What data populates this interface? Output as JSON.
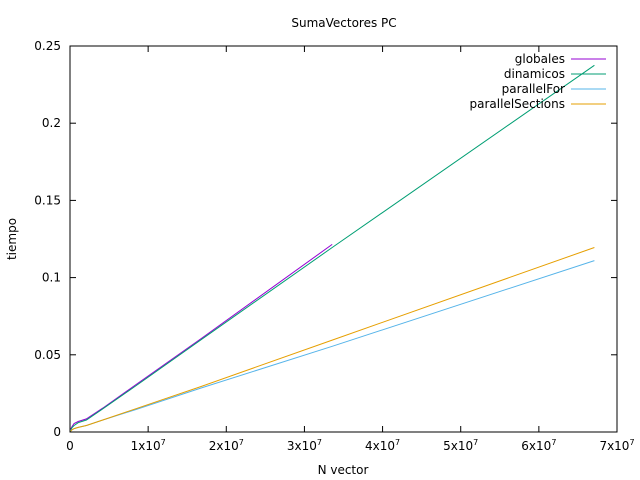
{
  "chart_data": {
    "type": "line",
    "title": "SumaVectores PC",
    "xlabel": "N vector",
    "ylabel": "tiempo",
    "xlim": [
      0,
      70000000
    ],
    "ylim": [
      0,
      0.25
    ],
    "grid": false,
    "legend_position": "top-right",
    "x_ticks": [
      {
        "value": 0,
        "mantissa": "0",
        "exp": ""
      },
      {
        "value": 10000000,
        "mantissa": "1x10",
        "exp": "7"
      },
      {
        "value": 20000000,
        "mantissa": "2x10",
        "exp": "7"
      },
      {
        "value": 30000000,
        "mantissa": "3x10",
        "exp": "7"
      },
      {
        "value": 40000000,
        "mantissa": "4x10",
        "exp": "7"
      },
      {
        "value": 50000000,
        "mantissa": "5x10",
        "exp": "7"
      },
      {
        "value": 60000000,
        "mantissa": "6x10",
        "exp": "7"
      },
      {
        "value": 70000000,
        "mantissa": "7x10",
        "exp": "7"
      }
    ],
    "y_ticks": [
      {
        "value": 0,
        "label": "0"
      },
      {
        "value": 0.05,
        "label": "0.05"
      },
      {
        "value": 0.1,
        "label": "0.1"
      },
      {
        "value": 0.15,
        "label": "0.15"
      },
      {
        "value": 0.2,
        "label": "0.2"
      },
      {
        "value": 0.25,
        "label": "0.25"
      }
    ],
    "series": [
      {
        "name": "globales",
        "color": "#9400d3",
        "points": [
          [
            65536,
            0.0012
          ],
          [
            131072,
            0.0022
          ],
          [
            262144,
            0.0035
          ],
          [
            524288,
            0.0055
          ],
          [
            1048576,
            0.0068
          ],
          [
            2097152,
            0.0085
          ],
          [
            4194304,
            0.0155
          ],
          [
            8388608,
            0.0305
          ],
          [
            16777216,
            0.0605
          ],
          [
            33554432,
            0.1215
          ]
        ]
      },
      {
        "name": "dinamicos",
        "color": "#009e73",
        "points": [
          [
            65536,
            0.0008
          ],
          [
            131072,
            0.0015
          ],
          [
            262144,
            0.0028
          ],
          [
            524288,
            0.0042
          ],
          [
            1048576,
            0.006
          ],
          [
            2097152,
            0.0078
          ],
          [
            4194304,
            0.015
          ],
          [
            8388608,
            0.0298
          ],
          [
            16777216,
            0.0598
          ],
          [
            33554432,
            0.1195
          ],
          [
            67108864,
            0.2375
          ]
        ]
      },
      {
        "name": "parallelFor",
        "color": "#56b4e9",
        "points": [
          [
            65536,
            0.0005
          ],
          [
            131072,
            0.0008
          ],
          [
            262144,
            0.0014
          ],
          [
            524288,
            0.0022
          ],
          [
            1048576,
            0.003
          ],
          [
            2097152,
            0.0042
          ],
          [
            4194304,
            0.0078
          ],
          [
            8388608,
            0.0145
          ],
          [
            16777216,
            0.0285
          ],
          [
            33554432,
            0.0555
          ],
          [
            67108864,
            0.111
          ]
        ]
      },
      {
        "name": "parallelSections",
        "color": "#e69f00",
        "points": [
          [
            65536,
            0.0005
          ],
          [
            131072,
            0.0008
          ],
          [
            262144,
            0.0014
          ],
          [
            524288,
            0.0022
          ],
          [
            1048576,
            0.003
          ],
          [
            2097152,
            0.0042
          ],
          [
            4194304,
            0.0078
          ],
          [
            8388608,
            0.015
          ],
          [
            16777216,
            0.0295
          ],
          [
            33554432,
            0.0595
          ],
          [
            67108864,
            0.1195
          ]
        ]
      }
    ]
  }
}
